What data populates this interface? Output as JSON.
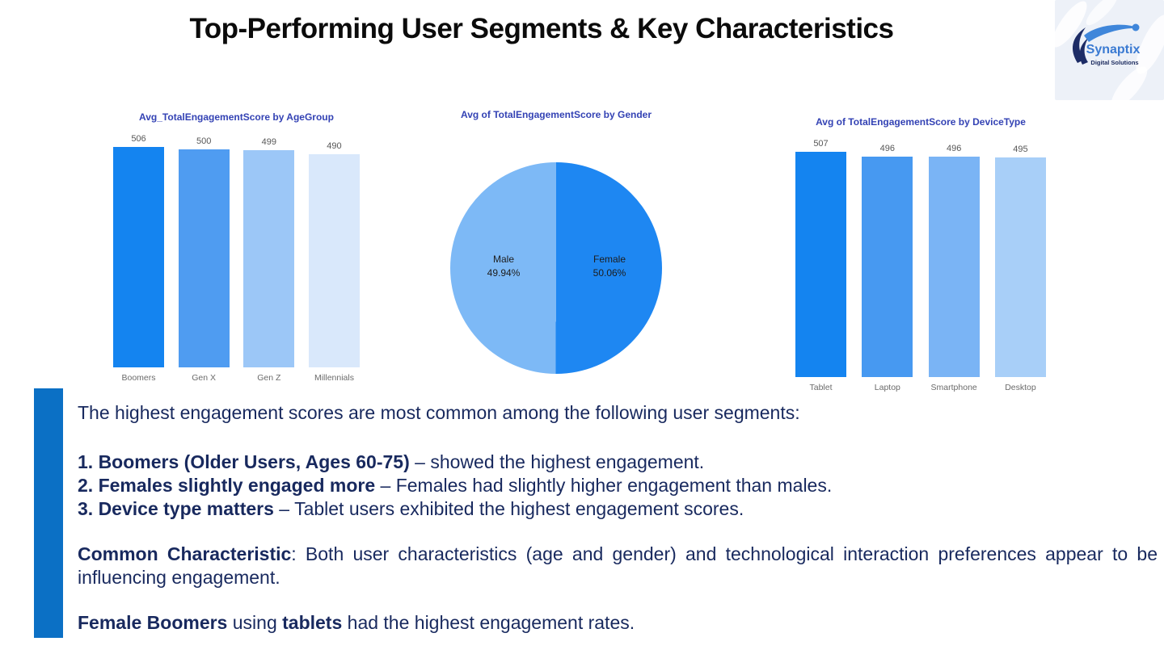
{
  "title": "Top-Performing User Segments & Key Characteristics",
  "logo": {
    "brand": "Synaptix",
    "tagline": "Digital Solutions"
  },
  "colors": {
    "accent_bar": "#0b70c5",
    "insight_text": "#18295e",
    "chart_title": "#3342b4",
    "value_label": "#575757",
    "category_label": "#6b6b6b",
    "title_text": "#0b0b0b"
  },
  "chart_data": [
    {
      "type": "bar",
      "title": "Avg_TotalEngagementScore by AgeGroup",
      "categories": [
        "Boomers",
        "Gen X",
        "Gen Z",
        "Millennials"
      ],
      "values": [
        506,
        500,
        499,
        490
      ],
      "bar_colors": [
        "#1484f0",
        "#4f9cf1",
        "#9cc7f7",
        "#d9e8fb"
      ],
      "ylim": [
        0,
        506
      ],
      "grid": false,
      "value_labels": true
    },
    {
      "type": "pie",
      "title": "Avg of TotalEngagementScore by Gender",
      "categories": [
        "Male",
        "Female"
      ],
      "values": [
        49.94,
        50.06
      ],
      "slice_colors": [
        "#7db9f6",
        "#1e87f2"
      ],
      "labels": [
        {
          "name": "Male",
          "pct": "49.94%"
        },
        {
          "name": "Female",
          "pct": "50.06%"
        }
      ]
    },
    {
      "type": "bar",
      "title": "Avg of TotalEngagementScore by DeviceType",
      "categories": [
        "Tablet",
        "Laptop",
        "Smartphone",
        "Desktop"
      ],
      "values": [
        507,
        496,
        496,
        495
      ],
      "bar_colors": [
        "#1484f0",
        "#4799f1",
        "#7ab4f5",
        "#a8cff8"
      ],
      "ylim": [
        0,
        507
      ],
      "grid": false,
      "value_labels": true
    }
  ],
  "insights": {
    "intro": "The highest engagement scores are most common among the following user segments:",
    "items": [
      {
        "bold": "1. Boomers (Older Users, Ages 60-75)",
        "rest": " – showed the highest engagement."
      },
      {
        "bold": "2. Females slightly engaged more",
        "rest": " – Females had slightly higher engagement than males."
      },
      {
        "bold": "3. Device type matters",
        "rest": " – Tablet users exhibited the highest engagement scores."
      }
    ],
    "common": {
      "bold": "Common Characteristic",
      "rest": ": Both user characteristics (age and gender) and technological interaction preferences appear to be influencing engagement."
    },
    "final": [
      {
        "text": "Female Boomers",
        "bold": true
      },
      {
        "text": " using ",
        "bold": false
      },
      {
        "text": "tablets",
        "bold": true
      },
      {
        "text": " had the highest engagement rates.",
        "bold": false
      }
    ]
  }
}
